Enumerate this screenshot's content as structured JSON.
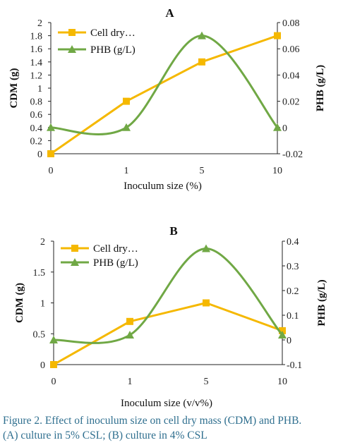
{
  "caption": {
    "line1": "Figure 2. Effect of inoculum size on cell dry mass (CDM) and PHB.",
    "line2": "(A) culture in 5% CSL; (B) culture in 4% CSL"
  },
  "colors": {
    "cdm": "#f5b800",
    "phb": "#70a845",
    "axis": "#222222"
  },
  "chart_data": [
    {
      "type": "line",
      "panel": "A",
      "title": "A",
      "categories": [
        "0",
        "1",
        "5",
        "10"
      ],
      "xlabel": "Inoculum size (%)",
      "ylabel": "CDM (g)",
      "y2label": "PHB (g/L)",
      "ylim": [
        0,
        2
      ],
      "yticks": [
        "0",
        "0.2",
        "0.4",
        "0.6",
        "0.8",
        "1",
        "1.2",
        "1.4",
        "1.6",
        "1.8",
        "2"
      ],
      "y2lim": [
        -0.02,
        0.08
      ],
      "y2ticks": [
        "-0.02",
        "0",
        "0.02",
        "0.04",
        "0.06",
        "0.08"
      ],
      "legend_position": "top-left",
      "series": [
        {
          "name": "Cell dry…",
          "axis": "left",
          "marker": "square",
          "values": [
            0,
            0.8,
            1.4,
            1.8
          ]
        },
        {
          "name": "PHB (g/L)",
          "axis": "right",
          "marker": "triangle",
          "values": [
            0,
            0,
            0.07,
            0
          ]
        }
      ]
    },
    {
      "type": "line",
      "panel": "B",
      "title": "B",
      "categories": [
        "0",
        "1",
        "5",
        "10"
      ],
      "xlabel": "Inoculum size  (v/v%)",
      "ylabel": "CDM (g)",
      "y2label": "PHB (g/L)",
      "ylim": [
        0,
        2
      ],
      "yticks": [
        "0",
        "0.5",
        "1",
        "1.5",
        "2"
      ],
      "y2lim": [
        -0.1,
        0.4
      ],
      "y2ticks": [
        "-0.1",
        "0",
        "0.1",
        "0.2",
        "0.3",
        "0.4"
      ],
      "legend_position": "top-left",
      "series": [
        {
          "name": "Cell dry…",
          "axis": "left",
          "marker": "square",
          "values": [
            0,
            0.7,
            1.0,
            0.55
          ]
        },
        {
          "name": "PHB (g/L)",
          "axis": "right",
          "marker": "triangle",
          "values": [
            0,
            0.02,
            0.37,
            0.02
          ]
        }
      ]
    }
  ]
}
